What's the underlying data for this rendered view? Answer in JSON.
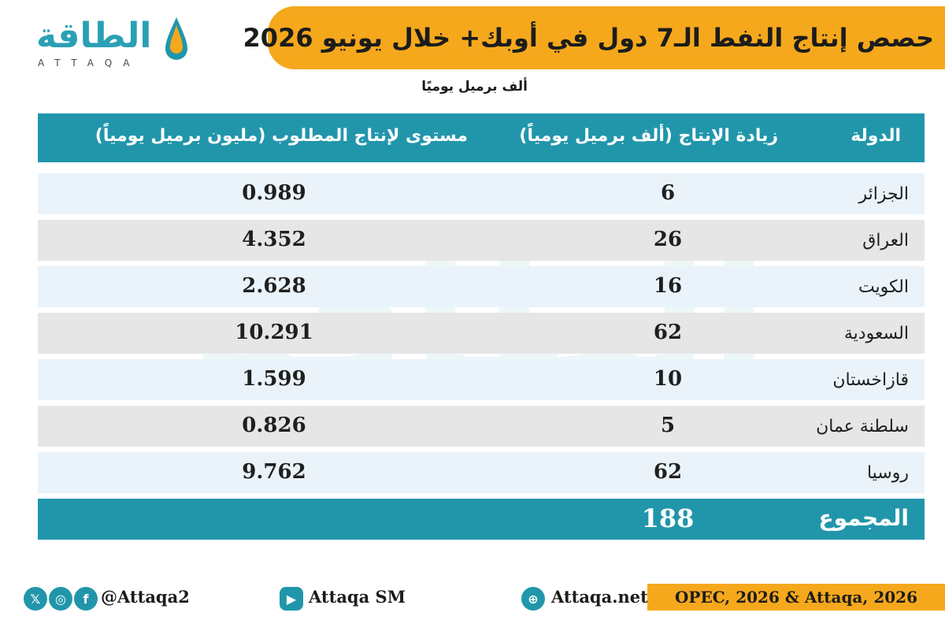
{
  "title": "حصص إنتاج النفط الـ7 دول في أوبك+ خلال يونيو 2026",
  "unit_note": "ألف برميل يوميًا",
  "logo": {
    "name": "الطاقة",
    "latin": "ATTAQA"
  },
  "colors": {
    "accent_orange": "#f6a81c",
    "header_teal": "#2196ab",
    "row_light": "#eaf3fa",
    "row_gray": "#e6e6e6"
  },
  "chart_data": {
    "type": "table",
    "columns": [
      "الدولة",
      "زيادة الإنتاج (ألف برميل يومياً)",
      "مستوى لإنتاج المطلوب (مليون برميل يومياً)"
    ],
    "rows": [
      {
        "country": "الجزائر",
        "increase": "6",
        "level": "0.989"
      },
      {
        "country": "العراق",
        "increase": "26",
        "level": "4.352"
      },
      {
        "country": "الكويت",
        "increase": "16",
        "level": "2.628"
      },
      {
        "country": "السعودية",
        "increase": "62",
        "level": "10.291"
      },
      {
        "country": "قازاخستان",
        "increase": "10",
        "level": "1.599"
      },
      {
        "country": "سلطنة عمان",
        "increase": "5",
        "level": "0.826"
      },
      {
        "country": "روسيا",
        "increase": "62",
        "level": "9.762"
      }
    ],
    "total": {
      "label": "المجموع",
      "increase": "188"
    }
  },
  "footer": {
    "social_handle": "@Attaqa2",
    "youtube": "Attaqa SM",
    "website": "Attaqa.net",
    "source": "OPEC, 2026 & Attaqa, 2026",
    "icons": [
      "x-icon",
      "instagram-icon",
      "facebook-icon",
      "youtube-icon",
      "globe-icon"
    ]
  }
}
